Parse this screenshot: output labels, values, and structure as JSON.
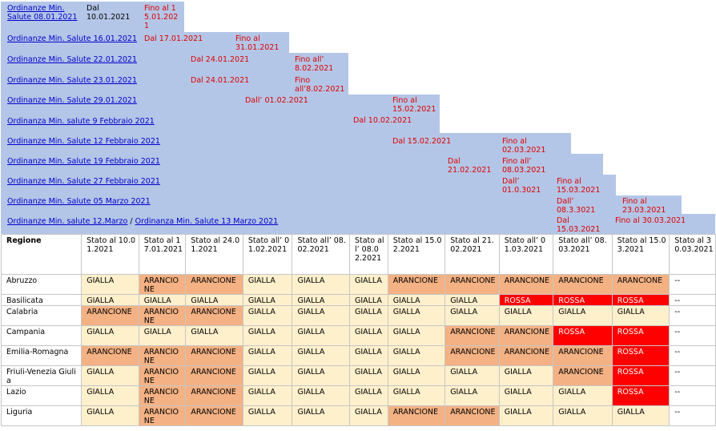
{
  "ordinanze": [
    {
      "link": "Ordinanze Min. Salute 08.01.2021",
      "from": "Dal 10.01.2021",
      "to": "Fino al 15.01.2021"
    },
    {
      "link": "Ordinanze Min. Salute 16.01.2021",
      "from": "Dal 17.01.2021",
      "to": "Fino al 31.01.2021"
    },
    {
      "link": "Ordinanze Min. Salute 22.01.2021",
      "from": "Dal 24.01.2021",
      "to": "Fino all’ 8.02.2021"
    },
    {
      "link": "Ordinanze Min. Salute 23.01.2021",
      "from": "Dal 24.01.2021",
      "to": "Fino all’8.02.2021"
    },
    {
      "link": "Ordinanze Min. Salute 29.01.2021",
      "from": "Dall’ 01.02.2021",
      "to": "Fino al 15.02.2021"
    },
    {
      "link": "Ordinanza Min. salute 9 Febbraio 2021",
      "from": "Dal 10.02.2021",
      "to": ""
    },
    {
      "link": "Ordinanze Min. Salute 12 Febbraio 2021",
      "from": "Dal 15.02.2021",
      "to": "Fino al 02.03.2021"
    },
    {
      "link": "Ordinanze Min. Salute 19 Febbraio 2021",
      "from": "Dal 21.02.2021",
      "to": "Fino all’ 08.03.2021"
    },
    {
      "link": "Ordinanze Min. Salute 27 Febbraio 2021",
      "from": "Dall’ 01.0.3021",
      "to": "Fino al 15.03.2021"
    },
    {
      "link": "Ordinanze Min. Salute 05 Marzo 2021",
      "from": "Dall’ 08.3.3021",
      "to": "Fino al 23.03.2021"
    },
    {
      "link": "Ordinanze Min. salute 12.Marzo",
      "sep": " / ",
      "link2": "Ordinanza Min. Salute 13 Marzo 2021",
      "from": "Dal 15.03.2021",
      "to": "Fino al 30.03.2021"
    }
  ],
  "table": {
    "headers": [
      "Regione",
      "Stato al 10.01.2021",
      "Stato al 17.01.2021",
      "Stato al 24.01.2021",
      "Stato all’ 01.02.2021",
      "Stato all’ 08.02.2021",
      "Stato all’ 08.02.2021",
      "Stato al 15.02.2021",
      "Stato al 21.02.2021",
      "Stato all’ 01.03.2021",
      "Stato all’ 08.03.2021",
      "Stato al 15.03.2021",
      "Stato al 30.03.2021"
    ],
    "rows": [
      {
        "region": "Abruzzo",
        "cells": [
          "GIALLA",
          "ARANCIONE",
          "ARANCIONE",
          "GIALLA",
          "GIALLA",
          "GIALLA",
          "ARANCIONE",
          "ARANCIONE",
          "ARANCIONE",
          "ARANCIONE",
          "ARANCIONE",
          "--"
        ]
      },
      {
        "region": "Basilicata",
        "cells": [
          "GIALLA",
          "GIALLA",
          "GIALLA",
          "GIALLA",
          "GIALLA",
          "GIALLA",
          "GIALLA",
          "GIALLA",
          "ROSSA",
          "ROSSA",
          "ROSSA",
          "--"
        ]
      },
      {
        "region": "Calabria",
        "cells": [
          "ARANCIONE",
          "ARANCIONE",
          "ARANCIONE",
          "GIALLA",
          "GIALLA",
          "GIALLA",
          "GIALLA",
          "GIALLA",
          "GIALLA",
          "GIALLA",
          "GIALLA",
          "--"
        ]
      },
      {
        "region": "Campania",
        "cells": [
          "GIALLA",
          "GIALLA",
          "GIALLA",
          "GIALLA",
          "GIALLA",
          "GIALLA",
          "GIALLA",
          "ARANCIONE",
          "ARANCIONE",
          "ROSSA",
          "ROSSA",
          "--"
        ]
      },
      {
        "region": "Emilia-Romagna",
        "cells": [
          "ARANCIONE",
          "ARANCIONE",
          "ARANCIONE",
          "GIALLA",
          "GIALLA",
          "GIALLA",
          "GIALLA",
          "ARANCIONE",
          "ARANCIONE",
          "ARANCIONE",
          "ROSSA",
          "--"
        ]
      },
      {
        "region": "Friuli-Venezia Giulia",
        "cells": [
          "GIALLA",
          "ARANCIONE",
          "ARANCIONE",
          "GIALLA",
          "GIALLA",
          "GIALLA",
          "GIALLA",
          "GIALLA",
          "GIALLA",
          "ARANCIONE",
          "ROSSA",
          "--"
        ]
      },
      {
        "region": "Lazio",
        "cells": [
          "GIALLA",
          "ARANCIONE",
          "ARANCIONE",
          "GIALLA",
          "GIALLA",
          "GIALLA",
          "GIALLA",
          "GIALLA",
          "GIALLA",
          "GIALLA",
          "ROSSA",
          "--"
        ]
      },
      {
        "region": "Liguria",
        "cells": [
          "GIALLA",
          "ARANCIONE",
          "ARANCIONE",
          "GIALLA",
          "GIALLA",
          "GIALLA",
          "ARANCIONE",
          "ARANCIONE",
          "GIALLA",
          "GIALLA",
          "GIALLA",
          "--"
        ]
      }
    ]
  }
}
